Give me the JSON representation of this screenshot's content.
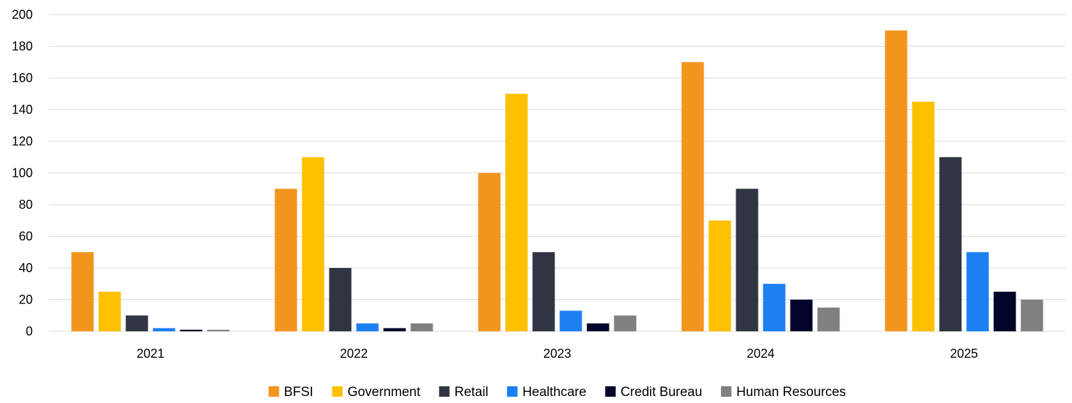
{
  "chart_data": {
    "type": "bar",
    "categories": [
      "2021",
      "2022",
      "2023",
      "2024",
      "2025"
    ],
    "series": [
      {
        "name": "BFSI",
        "color": "#F2951E",
        "values": [
          50,
          90,
          100,
          170,
          190
        ]
      },
      {
        "name": "Government",
        "color": "#FFC000",
        "values": [
          25,
          110,
          150,
          70,
          145
        ]
      },
      {
        "name": "Retail",
        "color": "#313543",
        "values": [
          10,
          40,
          50,
          90,
          110
        ]
      },
      {
        "name": "Healthcare",
        "color": "#1C7FF2",
        "values": [
          2,
          5,
          13,
          30,
          50
        ]
      },
      {
        "name": "Credit Bureau",
        "color": "#02042A",
        "values": [
          1,
          2,
          5,
          20,
          25
        ]
      },
      {
        "name": "Human Resources",
        "color": "#808080",
        "values": [
          1,
          5,
          10,
          15,
          20
        ]
      }
    ],
    "ylim": [
      0,
      200
    ],
    "yticks": [
      0,
      20,
      40,
      60,
      80,
      100,
      120,
      140,
      160,
      180,
      200
    ],
    "grid": true,
    "legend": "bottom",
    "xlabel": "",
    "ylabel": "",
    "title": ""
  }
}
